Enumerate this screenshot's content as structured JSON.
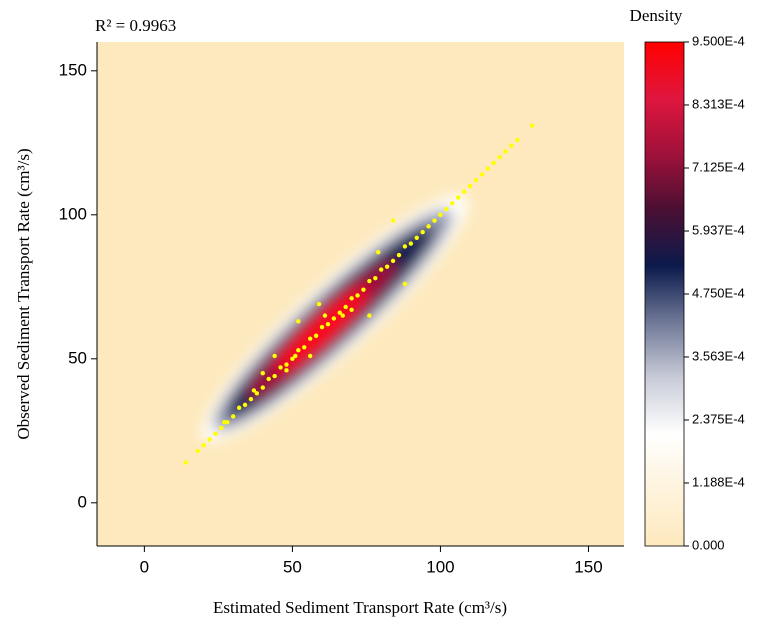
{
  "chart_data": {
    "type": "scatter",
    "title": "R² = 0.9963",
    "x_label": "Estimated Sediment Transport Rate (cm³/s)",
    "y_label": "Observed Sediment Transport Rate (cm³/s)",
    "colorbar_title": "Density",
    "xlim": [
      -16,
      162
    ],
    "ylim": [
      -15,
      160
    ],
    "xticks": [
      0,
      50,
      100,
      150
    ],
    "yticks": [
      0,
      50,
      100,
      150
    ],
    "clim": [
      0,
      0.00095
    ],
    "cticks": [
      {
        "value": 0,
        "label": "0.000"
      },
      {
        "value": 0.0001188,
        "label": "1.188E-4"
      },
      {
        "value": 0.0002375,
        "label": "2.375E-4"
      },
      {
        "value": 0.0003563,
        "label": "3.563E-4"
      },
      {
        "value": 0.000475,
        "label": "4.750E-4"
      },
      {
        "value": 0.0005937,
        "label": "5.937E-4"
      },
      {
        "value": 0.0007125,
        "label": "7.125E-4"
      },
      {
        "value": 0.0008313,
        "label": "8.313E-4"
      },
      {
        "value": 0.00095,
        "label": "9.500E-4"
      }
    ],
    "colorscale": [
      "#fde9bd",
      "#fef3dc",
      "#ffffff",
      "#c9ccd8",
      "#6f7896",
      "#0b1a4c",
      "#4a0f33",
      "#a0113a",
      "#e0163e",
      "#ff0000"
    ],
    "point_color": "#ffff00",
    "x": [
      14,
      18,
      20,
      22,
      24,
      26,
      27,
      28,
      30,
      32,
      34,
      36,
      38,
      40,
      42,
      44,
      46,
      48,
      50,
      52,
      54,
      56,
      58,
      60,
      62,
      64,
      66,
      68,
      70,
      72,
      74,
      76,
      78,
      80,
      82,
      84,
      86,
      88,
      90,
      92,
      94,
      96,
      98,
      100,
      102,
      104,
      106,
      108,
      110,
      112,
      114,
      116,
      118,
      120,
      122,
      124,
      126,
      131,
      84,
      88,
      76,
      59,
      52,
      56,
      51,
      44,
      40,
      67,
      70,
      79,
      61,
      37,
      48
    ],
    "y": [
      14,
      18,
      20,
      22,
      24,
      26,
      28,
      28,
      30,
      33,
      34,
      36,
      38,
      40,
      43,
      44,
      47,
      48,
      50,
      53,
      54,
      57,
      58,
      61,
      62,
      64,
      66,
      68,
      71,
      72,
      74,
      77,
      78,
      81,
      82,
      84,
      86,
      89,
      90,
      92,
      94,
      96,
      98,
      100,
      102,
      104,
      106,
      108,
      110,
      112,
      114,
      116,
      118,
      120,
      122,
      124,
      126,
      131,
      98,
      76,
      65,
      69,
      63,
      51,
      51,
      51,
      45,
      65,
      67,
      87,
      65,
      39,
      46
    ]
  }
}
